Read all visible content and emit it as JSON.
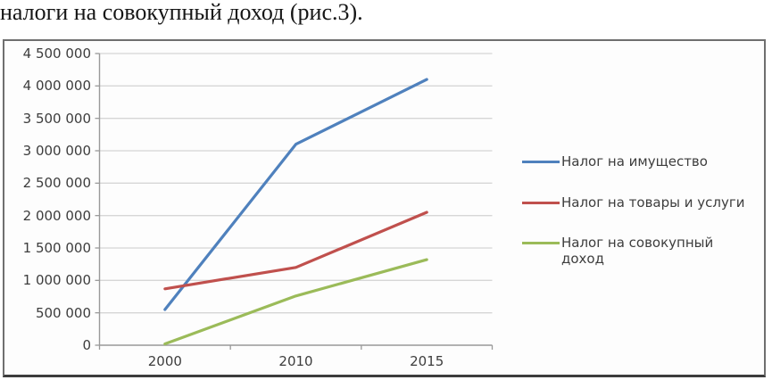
{
  "caption": {
    "text": "налоги на совокупный доход (рис.3)."
  },
  "chart_data": {
    "type": "line",
    "title": "",
    "xlabel": "",
    "ylabel": "",
    "categories": [
      "2000",
      "2010",
      "2015"
    ],
    "series": [
      {
        "name": "Налог на имущество",
        "color": "#4F81BD",
        "values": [
          550000,
          3100000,
          4100000
        ]
      },
      {
        "name": "Налог на товары и услуги",
        "color": "#C0504D",
        "values": [
          870000,
          1200000,
          2050000
        ]
      },
      {
        "name": "Налог на совокупный доход",
        "color": "#9BBB59",
        "values": [
          20000,
          760000,
          1320000
        ]
      }
    ],
    "ylim": [
      0,
      4500000
    ],
    "ytick_step": 500000,
    "yticklabels": [
      "4 500 000",
      "4 000 000",
      "3 500 000",
      "3 000 000",
      "2 500 000",
      "2 000 000",
      "1 500 000",
      "1 000 000",
      "500 000",
      "0"
    ],
    "grid": true,
    "legend_position": "right"
  }
}
